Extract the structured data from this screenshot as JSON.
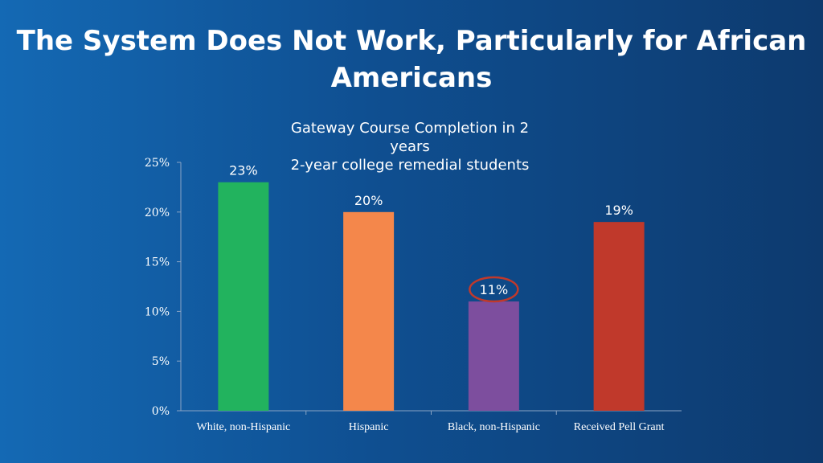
{
  "slide": {
    "title": "The System Does Not Work, Particularly for African Americans"
  },
  "chart_data": {
    "type": "bar",
    "title_lines": [
      "Gateway Course Completion in 2",
      "years",
      "2-year college remedial students"
    ],
    "categories": [
      "White, non-Hispanic",
      "Hispanic",
      "Black, non-Hispanic",
      "Received Pell Grant"
    ],
    "values": [
      23,
      20,
      11,
      19
    ],
    "data_labels": [
      "23%",
      "20%",
      "11%",
      "19%"
    ],
    "bar_colors": [
      "#22b35e",
      "#f4874b",
      "#7d4e9e",
      "#c0392b"
    ],
    "highlight_index": 2,
    "highlight_color": "#c0392b",
    "ylim": [
      0,
      25
    ],
    "yticks": [
      "0%",
      "5%",
      "10%",
      "15%",
      "20%",
      "25%"
    ],
    "grid": false,
    "legend": "none"
  }
}
